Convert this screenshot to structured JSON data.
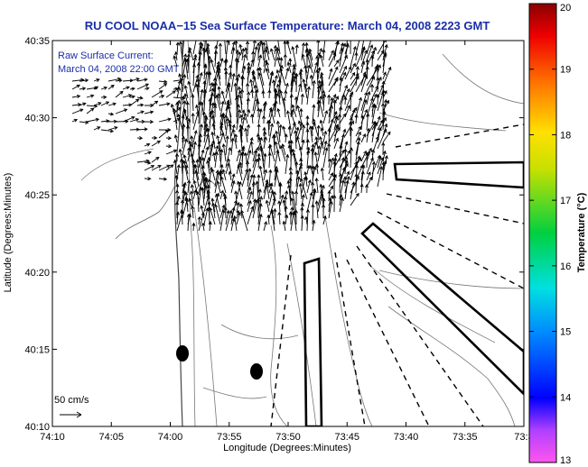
{
  "title": "RU COOL  NOAA−15 Sea Surface Temperature:  March 04, 2008 2223 GMT",
  "annotation_line1": "Raw Surface Current:",
  "annotation_line2": "March 04, 2008 22:00 GMT",
  "x_axis_label": "Longitude (Degrees:Minutes)",
  "y_axis_label": "Latitude (Degrees:Minutes)",
  "x_ticks": [
    "74:10",
    "74:05",
    "74:00",
    "73:55",
    "73:50",
    "73:45",
    "73:40",
    "73:35",
    "73:3"
  ],
  "y_ticks": [
    "40:35",
    "40:30",
    "40:25",
    "40:20",
    "40:15",
    "40:10"
  ],
  "colorbar_label": "Temperature (°C)",
  "colorbar_ticks": [
    "20",
    "19",
    "18",
    "17",
    "16",
    "15",
    "14",
    "13"
  ],
  "colorbar_range": [
    13,
    20
  ],
  "scale_label": "50 cm/s",
  "colors": {
    "title_text": "#1a2ea8",
    "land": "#ffffff",
    "contour": "#777777",
    "vectors": "#000000"
  },
  "chart_data": {
    "type": "map",
    "xlim": [
      "74:10",
      "73:30"
    ],
    "ylim": [
      "40:10",
      "40:35"
    ],
    "grid": false,
    "legend": "colorbar-right"
  }
}
